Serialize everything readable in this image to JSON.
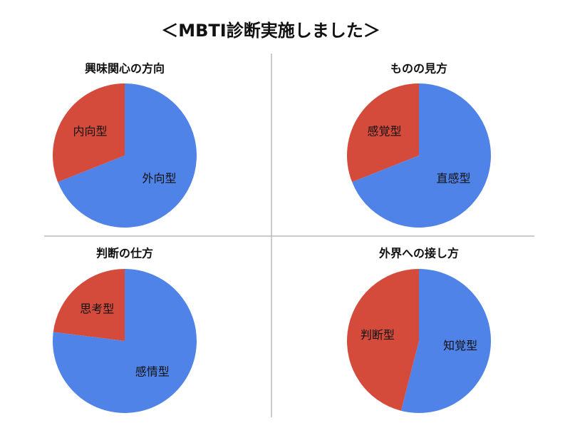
{
  "title": "＜MBTI診断実施しました＞",
  "chart_data": [
    {
      "type": "pie",
      "title": "興味関心の方向",
      "categories": [
        "外向型",
        "内向型"
      ],
      "values": [
        69,
        31
      ],
      "colors": [
        "#5083e8",
        "#d44b3b"
      ]
    },
    {
      "type": "pie",
      "title": "ものの見方",
      "categories": [
        "直感型",
        "感覚型"
      ],
      "values": [
        69,
        31
      ],
      "colors": [
        "#5083e8",
        "#d44b3b"
      ]
    },
    {
      "type": "pie",
      "title": "判断の仕方",
      "categories": [
        "感情型",
        "思考型"
      ],
      "values": [
        77,
        23
      ],
      "colors": [
        "#5083e8",
        "#d44b3b"
      ]
    },
    {
      "type": "pie",
      "title": "外界への接し方",
      "categories": [
        "知覚型",
        "判断型"
      ],
      "values": [
        54,
        46
      ],
      "colors": [
        "#5083e8",
        "#d44b3b"
      ]
    }
  ]
}
